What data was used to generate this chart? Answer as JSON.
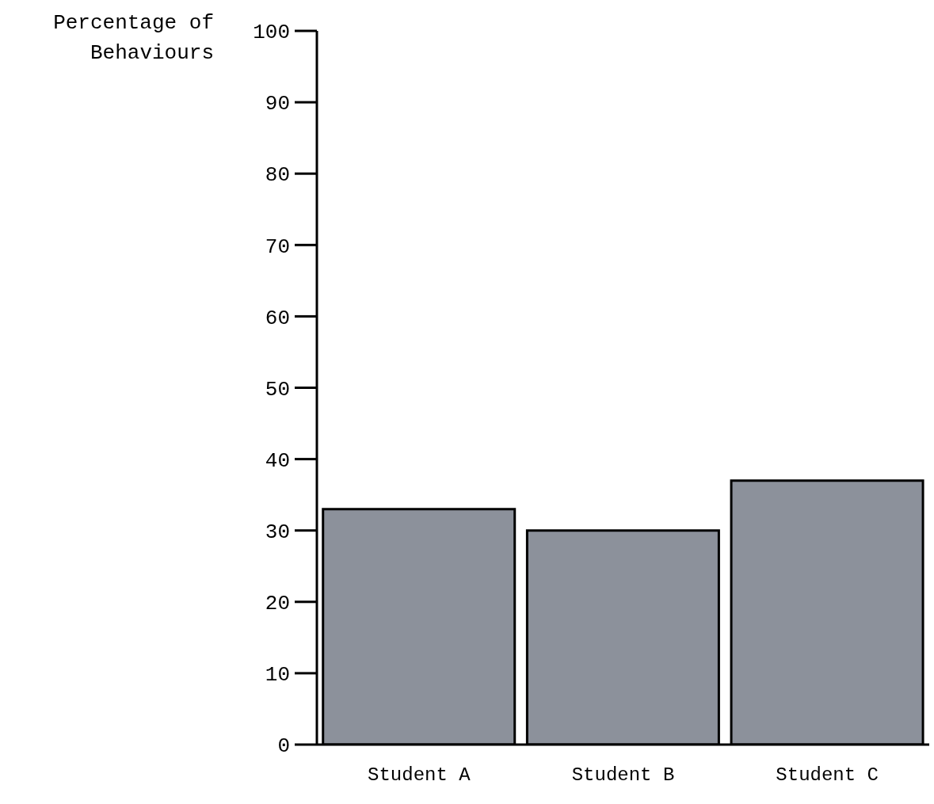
{
  "chart_data": {
    "type": "bar",
    "ylabel": "Percentage of Behaviours",
    "categories": [
      "Student A",
      "Student B",
      "Student C"
    ],
    "values": [
      33,
      30,
      37
    ],
    "color": "#8c919b",
    "ylim": [
      0,
      100
    ],
    "yticks": [
      0,
      10,
      20,
      30,
      40,
      50,
      60,
      70,
      80,
      90,
      100
    ]
  }
}
